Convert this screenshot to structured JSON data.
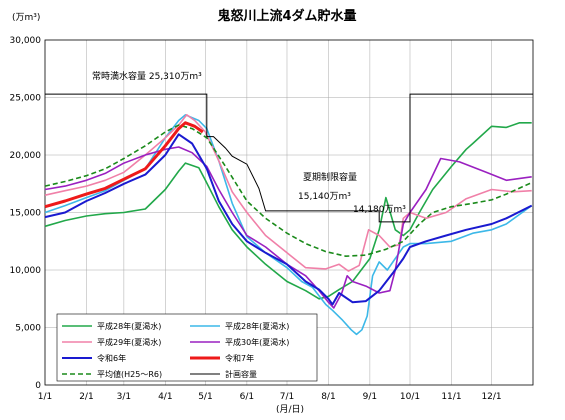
{
  "chart_data": {
    "type": "line",
    "title": "鬼怒川上流4ダム貯水量",
    "ylabel": "(万m³)",
    "xlabel": "(月/日)",
    "ylim": [
      0,
      30000
    ],
    "yticks": [
      "0",
      "5,000",
      "10,000",
      "15,000",
      "20,000",
      "25,000",
      "30,000"
    ],
    "x_ticks": [
      "1/1",
      "2/1",
      "3/1",
      "4/1",
      "5/1",
      "6/1",
      "7/1",
      "8/1",
      "9/1",
      "10/1",
      "11/1",
      "12/1"
    ],
    "grid": true,
    "annotations": {
      "normal_capacity": "常時満水容量 25,310万m³",
      "summer_limit": "夏期制限容量",
      "summer_value_1": "15,140万m³",
      "summer_value_2": "14,180万m³"
    },
    "series": [
      {
        "name": "平成28年(夏渇水)",
        "color": "#22a84a",
        "x": [
          0,
          15,
          31,
          45,
          59,
          75,
          90,
          100,
          105,
          115,
          120,
          130,
          140,
          151,
          165,
          181,
          195,
          205,
          212,
          220,
          230,
          243,
          250,
          255,
          262,
          268,
          273,
          280,
          290,
          304,
          315,
          320,
          334,
          345,
          355,
          364
        ],
        "values": [
          13800,
          14300,
          14700,
          14900,
          15000,
          15300,
          17000,
          18600,
          19300,
          18900,
          17800,
          15500,
          13500,
          12000,
          10500,
          9000,
          8200,
          7500,
          7700,
          8300,
          9000,
          11000,
          13500,
          16300,
          13500,
          13000,
          13500,
          15000,
          17000,
          19000,
          20500,
          21000,
          22500,
          22400,
          22800,
          22800
        ]
      },
      {
        "name": "平成28年(夏渇水)",
        "color": "#3cb8e8",
        "x": [
          0,
          15,
          31,
          45,
          59,
          75,
          90,
          100,
          105,
          115,
          121,
          130,
          140,
          151,
          165,
          181,
          192,
          200,
          210,
          215,
          222,
          229,
          233,
          237,
          241,
          245,
          250,
          256,
          262,
          268,
          273,
          285,
          304,
          320,
          334,
          345,
          364
        ],
        "values": [
          15000,
          15600,
          16300,
          16900,
          17800,
          18800,
          21500,
          23000,
          23500,
          23000,
          22300,
          19500,
          15800,
          12900,
          11500,
          10200,
          9000,
          8500,
          7000,
          6500,
          5700,
          4800,
          4400,
          4800,
          6000,
          9500,
          10700,
          10000,
          11000,
          12000,
          12300,
          12300,
          12500,
          13200,
          13500,
          14000,
          15600
        ]
      },
      {
        "name": "平成29年(夏渇水)",
        "color": "#f080a8",
        "x": [
          0,
          15,
          31,
          45,
          59,
          75,
          90,
          100,
          106,
          112,
          120,
          130,
          140,
          151,
          165,
          181,
          195,
          210,
          220,
          227,
          235,
          242,
          250,
          258,
          265,
          268,
          273,
          285,
          300,
          315,
          334,
          350,
          364
        ],
        "values": [
          16500,
          16900,
          17300,
          17800,
          18500,
          20000,
          21500,
          22600,
          23500,
          23000,
          22000,
          19500,
          16800,
          15000,
          13000,
          11500,
          10200,
          10100,
          10500,
          9900,
          10400,
          13500,
          13000,
          12000,
          12200,
          14500,
          15000,
          14500,
          15000,
          16200,
          17000,
          16800,
          16900
        ]
      },
      {
        "name": "平成30年(夏渇水)",
        "color": "#9a20c0",
        "x": [
          0,
          15,
          31,
          45,
          59,
          75,
          90,
          100,
          110,
          121,
          130,
          140,
          151,
          165,
          181,
          195,
          205,
          212,
          216,
          222,
          226,
          230,
          240,
          250,
          258,
          262,
          268,
          273,
          285,
          296,
          310,
          330,
          345,
          364
        ],
        "values": [
          17000,
          17300,
          17800,
          18400,
          19300,
          20000,
          20500,
          20700,
          20200,
          19000,
          17000,
          15000,
          13000,
          12000,
          10500,
          9500,
          8200,
          7200,
          6700,
          8000,
          9500,
          9000,
          8600,
          8000,
          8200,
          10000,
          14000,
          15000,
          17000,
          19700,
          19400,
          18500,
          17800,
          18100
        ]
      },
      {
        "name": "令和6年",
        "color": "#1a1ad0",
        "x": [
          0,
          15,
          31,
          45,
          59,
          75,
          90,
          100,
          110,
          121,
          130,
          140,
          151,
          165,
          181,
          195,
          205,
          212,
          215,
          220,
          230,
          240,
          250,
          260,
          268,
          273,
          285,
          300,
          315,
          334,
          345,
          364
        ],
        "values": [
          14600,
          15000,
          16000,
          16700,
          17500,
          18300,
          20000,
          21800,
          21000,
          18800,
          16000,
          14000,
          12500,
          11500,
          10500,
          9000,
          8300,
          7500,
          7000,
          8000,
          7200,
          7300,
          8200,
          9700,
          11000,
          12000,
          12500,
          13000,
          13500,
          14000,
          14500,
          15600
        ]
      },
      {
        "name": "令和7年",
        "color": "#ee1a1a",
        "x": [
          0,
          15,
          31,
          45,
          59,
          75,
          90,
          100,
          105,
          112,
          118
        ],
        "values": [
          15500,
          16000,
          16600,
          17100,
          17900,
          18800,
          20800,
          22300,
          22800,
          22500,
          22000
        ]
      },
      {
        "name": "平均値(H25～R6)",
        "color": "#1a8a1a",
        "x": [
          0,
          15,
          31,
          45,
          59,
          75,
          90,
          100,
          110,
          121,
          135,
          151,
          165,
          181,
          195,
          210,
          225,
          240,
          255,
          268,
          280,
          290,
          304,
          320,
          334,
          345,
          364
        ],
        "values": [
          17300,
          17700,
          18200,
          18800,
          19700,
          20800,
          22000,
          22600,
          22300,
          21500,
          19000,
          16000,
          14500,
          13200,
          12300,
          11600,
          11200,
          11300,
          11800,
          12500,
          14000,
          15000,
          15500,
          15800,
          16100,
          16600,
          17600
        ]
      },
      {
        "name": "計画容量",
        "color": "#000000",
        "x": [
          0,
          119,
          121,
          135,
          140,
          151,
          160,
          168,
          181,
          190,
          212,
          220,
          223,
          230,
          241,
          248,
          262,
          272,
          273,
          285,
          364
        ],
        "values": [
          25300,
          25300,
          25300,
          25300,
          25300,
          25300,
          25300,
          25300,
          25300,
          25300,
          25300,
          25300,
          25300,
          25300,
          25300,
          25300,
          25300,
          25300,
          25300,
          25300,
          25300
        ]
      }
    ],
    "legend": [
      "平成28年(夏渇水)",
      "平成28年(夏渇水)",
      "平成29年(夏渇水)",
      "平成30年(夏渇水)",
      "令和6年",
      "令和7年",
      "平均値(H25～R6)",
      "計画容量"
    ]
  }
}
